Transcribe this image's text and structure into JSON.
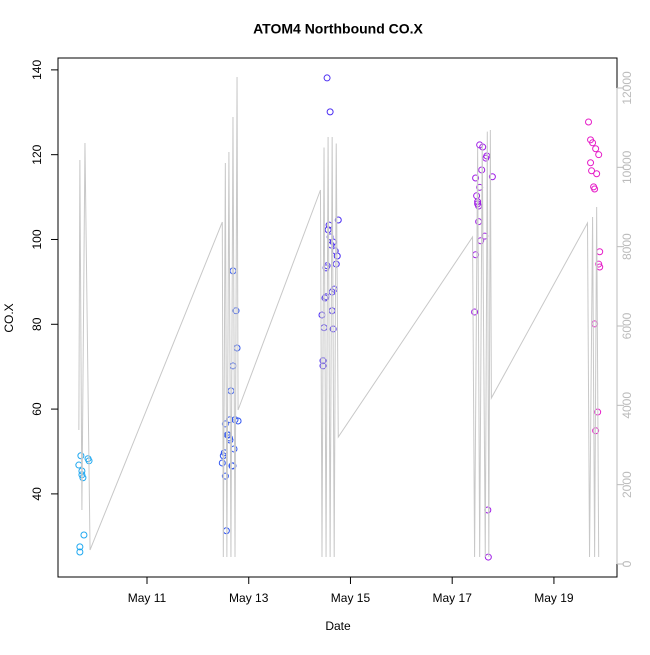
{
  "chart_data": {
    "type": "scatter",
    "title": "ATOM4 Northbound CO.X",
    "x_label": "Date",
    "y_label": "CO.X",
    "xlim": [
      9.25,
      20.24
    ],
    "ylim": [
      20.4,
      142.8
    ],
    "y2lim": [
      -328,
      12756
    ],
    "xticks": [
      {
        "value": 11,
        "label": "May 11"
      },
      {
        "value": 13,
        "label": "May 13"
      },
      {
        "value": 15,
        "label": "May 15"
      },
      {
        "value": 17,
        "label": "May 17"
      },
      {
        "value": 19,
        "label": "May 19"
      }
    ],
    "yticks": [
      40,
      60,
      80,
      100,
      120,
      140
    ],
    "y2ticks": [
      0,
      2000,
      4000,
      6000,
      8000,
      10000,
      12000
    ],
    "y2_color": "#bbbbbb",
    "series": [
      {
        "color": "#1fa8f0",
        "x": [
          9.68,
          9.68,
          9.66,
          9.7,
          9.72,
          9.72,
          9.74,
          9.76,
          9.84,
          9.86
        ],
        "values": [
          27.5,
          26.3,
          46.8,
          49.0,
          45.4,
          44.5,
          43.8,
          30.3,
          48.3,
          47.8
        ]
      },
      {
        "color": "#2f55f0",
        "x": [
          12.48,
          12.5,
          12.52,
          12.54,
          12.54,
          12.56,
          12.58,
          12.6,
          12.62,
          12.63,
          12.63,
          12.65,
          12.67,
          12.69,
          12.69,
          12.69,
          12.71,
          12.73,
          12.75,
          12.77,
          12.79
        ],
        "values": [
          47.3,
          49.0,
          49.7,
          44.2,
          56.5,
          31.3,
          53.9,
          53.9,
          53.2,
          52.7,
          57.5,
          64.3,
          46.6,
          46.6,
          92.6,
          70.2,
          50.6,
          57.5,
          83.2,
          74.4,
          57.2
        ]
      },
      {
        "color": "#4a2cf2",
        "x": [
          14.44,
          14.46,
          14.46,
          14.48,
          14.5,
          14.52,
          14.52,
          14.54,
          14.54,
          14.56,
          14.58,
          14.6,
          14.6,
          14.62,
          14.64,
          14.66,
          14.68,
          14.64,
          14.66,
          14.7,
          14.72,
          14.74,
          14.76
        ],
        "values": [
          82.2,
          71.4,
          70.2,
          79.2,
          86.2,
          93.3,
          86.5,
          138.1,
          93.8,
          102.3,
          103.4,
          130.1,
          100.6,
          98.7,
          87.6,
          99.4,
          88.3,
          83.2,
          78.9,
          97.3,
          94.2,
          96.1,
          104.6
        ]
      },
      {
        "color": "#a01ee6",
        "x": [
          17.44,
          17.46,
          17.46,
          17.48,
          17.5,
          17.5,
          17.52,
          17.52,
          17.54,
          17.54,
          17.56,
          17.58,
          17.6,
          17.64,
          17.66,
          17.68,
          17.7,
          17.71,
          17.79
        ],
        "values": [
          82.9,
          114.5,
          96.4,
          110.3,
          108.9,
          108.4,
          107.9,
          104.2,
          112.3,
          122.3,
          99.7,
          116.4,
          121.8,
          100.8,
          119.2,
          119.7,
          36.2,
          25.1,
          114.8
        ]
      },
      {
        "color": "#e61ec8",
        "x": [
          19.68,
          19.72,
          19.72,
          19.74,
          19.76,
          19.78,
          19.8,
          19.8,
          19.82,
          19.82,
          19.84,
          19.86,
          19.88,
          19.88,
          19.9,
          19.9
        ],
        "values": [
          127.7,
          123.5,
          118.1,
          116.2,
          122.8,
          112.4,
          111.9,
          80.1,
          121.4,
          54.9,
          115.5,
          59.3,
          120.0,
          94.2,
          97.1,
          93.5
        ]
      },
      {
        "type": "line",
        "axis": "y2",
        "color": "#c8c8c8",
        "x": [
          9.66,
          9.68,
          9.72,
          9.78,
          9.88,
          12.48,
          12.5,
          12.54,
          12.57,
          12.61,
          12.65,
          12.69,
          12.73,
          12.77,
          12.79,
          14.41,
          14.44,
          14.48,
          14.52,
          14.56,
          14.6,
          14.64,
          14.68,
          14.72,
          14.76,
          17.4,
          17.44,
          17.5,
          17.54,
          17.59,
          17.65,
          17.69,
          17.72,
          17.75,
          17.77,
          19.66,
          19.7,
          19.76,
          19.8,
          19.84,
          19.88
        ],
        "values": [
          3378,
          10184,
          1361,
          10613,
          353,
          8621,
          176,
          10108,
          176,
          10386,
          176,
          11268,
          176,
          12276,
          3882,
          9428,
          176,
          10500,
          176,
          10764,
          176,
          10764,
          176,
          10600,
          3201,
          8243,
          176,
          10500,
          176,
          10600,
          176,
          10900,
          176,
          10940,
          4184,
          8596,
          176,
          8747,
          176,
          9000,
          176
        ]
      }
    ]
  }
}
